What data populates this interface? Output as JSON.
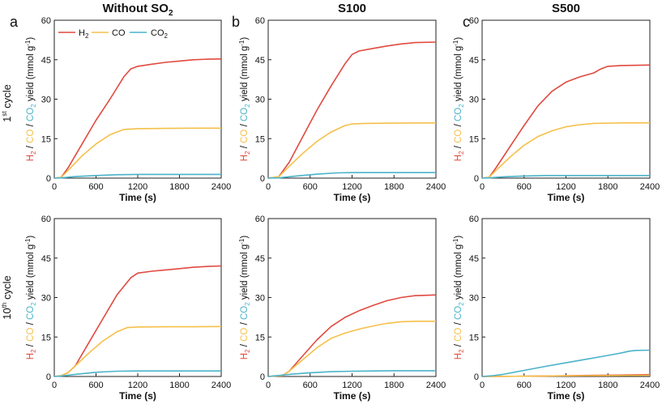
{
  "colors": {
    "h2": "#e04a3f",
    "co": "#f5c04a",
    "co2": "#4ab3c9",
    "text": "#111111"
  },
  "column_titles": [
    {
      "main": "Without SO",
      "sub": "2"
    },
    {
      "main": "S100",
      "sub": ""
    },
    {
      "main": "S500",
      "sub": ""
    }
  ],
  "panel_letters": [
    "a",
    "b",
    "c"
  ],
  "row_labels": [
    {
      "pre": "1",
      "sup": "st",
      "post": " cycle"
    },
    {
      "pre": "10",
      "sup": "th",
      "post": " cycle"
    }
  ],
  "ylabel": {
    "h2": "H",
    "co": "CO",
    "co2": "CO",
    "sub2": "2",
    "sep": " / ",
    "rest": " yield (mmol g",
    "sup": "-1",
    "close": ")"
  },
  "legend": [
    {
      "key": "h2",
      "label": "H",
      "sub": "2"
    },
    {
      "key": "co",
      "label": "CO",
      "sub": ""
    },
    {
      "key": "co2",
      "label": "CO",
      "sub": "2"
    }
  ],
  "chart_data": [
    {
      "type": "line",
      "panel": "a",
      "cycle": "1st cycle",
      "title": "Without SO2",
      "xlabel": "Time (s)",
      "ylabel": "H2 / CO / CO2 yield (mmol g-1)",
      "xlim": [
        0,
        2400
      ],
      "ylim": [
        0,
        60
      ],
      "xticks": [
        0,
        600,
        1200,
        1800,
        2400
      ],
      "yticks": [
        0,
        15,
        30,
        45,
        60
      ],
      "series": [
        {
          "name": "H2",
          "key": "h2",
          "x": [
            0,
            100,
            200,
            400,
            600,
            800,
            1000,
            1100,
            1200,
            1400,
            1600,
            1800,
            2000,
            2200,
            2400
          ],
          "y": [
            0,
            0.3,
            4,
            13,
            22,
            30,
            38.5,
            41.5,
            42.5,
            43.3,
            44,
            44.5,
            45,
            45.2,
            45.3
          ]
        },
        {
          "name": "CO",
          "key": "co",
          "x": [
            0,
            100,
            200,
            400,
            600,
            800,
            1000,
            1200,
            1600,
            2000,
            2400
          ],
          "y": [
            0,
            0.3,
            3,
            8.5,
            13,
            16.5,
            18.5,
            18.8,
            18.9,
            19,
            19
          ]
        },
        {
          "name": "CO2",
          "key": "co2",
          "x": [
            0,
            100,
            300,
            600,
            900,
            1200,
            1800,
            2400
          ],
          "y": [
            0,
            0.1,
            0.6,
            1,
            1.3,
            1.4,
            1.4,
            1.4
          ]
        }
      ]
    },
    {
      "type": "line",
      "panel": "b",
      "cycle": "1st cycle",
      "title": "S100",
      "xlabel": "Time (s)",
      "ylabel": "H2 / CO / CO2 yield (mmol g-1)",
      "xlim": [
        0,
        2400
      ],
      "ylim": [
        0,
        60
      ],
      "xticks": [
        0,
        600,
        1200,
        1800,
        2400
      ],
      "yticks": [
        0,
        15,
        30,
        45,
        60
      ],
      "series": [
        {
          "name": "H2",
          "key": "h2",
          "x": [
            0,
            150,
            300,
            500,
            700,
            900,
            1100,
            1200,
            1300,
            1500,
            1700,
            1900,
            2100,
            2400
          ],
          "y": [
            0,
            0.5,
            6,
            16,
            26,
            35,
            43.5,
            47,
            48.3,
            49.3,
            50.2,
            51,
            51.5,
            51.7
          ]
        },
        {
          "name": "CO",
          "key": "co",
          "x": [
            0,
            150,
            300,
            500,
            700,
            900,
            1100,
            1200,
            1400,
            1800,
            2400
          ],
          "y": [
            0,
            0.5,
            4.5,
            9.5,
            14,
            17.5,
            20,
            20.6,
            20.8,
            20.9,
            21
          ]
        },
        {
          "name": "CO2",
          "key": "co2",
          "x": [
            0,
            150,
            400,
            700,
            1000,
            1200,
            1800,
            2400
          ],
          "y": [
            0,
            0.1,
            0.8,
            1.5,
            2,
            2.1,
            2.1,
            2.1
          ]
        }
      ]
    },
    {
      "type": "line",
      "panel": "c",
      "cycle": "1st cycle",
      "title": "S500",
      "xlabel": "Time (s)",
      "ylabel": "H2 / CO / CO2 yield (mmol g-1)",
      "xlim": [
        0,
        2400
      ],
      "ylim": [
        0,
        60
      ],
      "xticks": [
        0,
        600,
        1200,
        1800,
        2400
      ],
      "yticks": [
        0,
        15,
        30,
        45,
        60
      ],
      "series": [
        {
          "name": "H2",
          "key": "h2",
          "x": [
            0,
            100,
            200,
            400,
            600,
            800,
            1000,
            1200,
            1400,
            1600,
            1700,
            1800,
            2000,
            2400
          ],
          "y": [
            0,
            0.3,
            4,
            12,
            20,
            27.5,
            33,
            36.5,
            38.5,
            40,
            41.5,
            42.5,
            42.8,
            43
          ]
        },
        {
          "name": "CO",
          "key": "co",
          "x": [
            0,
            100,
            200,
            400,
            600,
            800,
            1000,
            1200,
            1400,
            1600,
            2000,
            2400
          ],
          "y": [
            0,
            0.3,
            3,
            8,
            12.5,
            15.8,
            18,
            19.5,
            20.3,
            20.8,
            21,
            21
          ]
        },
        {
          "name": "CO2",
          "key": "co2",
          "x": [
            0,
            100,
            300,
            600,
            900,
            1200,
            2400
          ],
          "y": [
            0,
            0.1,
            0.5,
            0.8,
            1,
            1,
            1
          ]
        }
      ]
    },
    {
      "type": "line",
      "panel": "a",
      "cycle": "10th cycle",
      "title": "Without SO2",
      "xlabel": "Time (s)",
      "ylabel": "H2 / CO / CO2 yield (mmol g-1)",
      "xlim": [
        0,
        2400
      ],
      "ylim": [
        0,
        60
      ],
      "xticks": [
        0,
        600,
        1200,
        1800,
        2400
      ],
      "yticks": [
        0,
        15,
        30,
        45,
        60
      ],
      "series": [
        {
          "name": "H2",
          "key": "h2",
          "x": [
            0,
            100,
            200,
            300,
            500,
            700,
            900,
            1100,
            1200,
            1400,
            1600,
            1800,
            2000,
            2200,
            2400
          ],
          "y": [
            0,
            0.3,
            1.5,
            4,
            13,
            22,
            31,
            37.5,
            39.3,
            40,
            40.5,
            41,
            41.5,
            41.8,
            42
          ]
        },
        {
          "name": "CO",
          "key": "co",
          "x": [
            0,
            100,
            200,
            300,
            500,
            700,
            900,
            1050,
            1200,
            1600,
            2000,
            2400
          ],
          "y": [
            0,
            0.3,
            1.5,
            4,
            9,
            13.5,
            17,
            18.6,
            18.8,
            18.9,
            18.9,
            19
          ]
        },
        {
          "name": "CO2",
          "key": "co2",
          "x": [
            0,
            100,
            300,
            600,
            900,
            1200,
            1800,
            2400
          ],
          "y": [
            0,
            0.2,
            0.8,
            1.6,
            2,
            2.1,
            2.1,
            2.1
          ]
        }
      ]
    },
    {
      "type": "line",
      "panel": "b",
      "cycle": "10th cycle",
      "title": "S100",
      "xlabel": "Time (s)",
      "ylabel": "H2 / CO / CO2 yield (mmol g-1)",
      "xlim": [
        0,
        2400
      ],
      "ylim": [
        0,
        60
      ],
      "xticks": [
        0,
        600,
        1200,
        1800,
        2400
      ],
      "yticks": [
        0,
        15,
        30,
        45,
        60
      ],
      "series": [
        {
          "name": "H2",
          "key": "h2",
          "x": [
            0,
            200,
            300,
            500,
            700,
            900,
            1100,
            1300,
            1500,
            1700,
            1900,
            2100,
            2400
          ],
          "y": [
            0,
            0.3,
            2,
            8,
            14,
            19,
            22.5,
            25,
            27,
            28.8,
            30,
            30.7,
            31
          ]
        },
        {
          "name": "CO",
          "key": "co",
          "x": [
            0,
            200,
            300,
            500,
            700,
            900,
            1100,
            1300,
            1500,
            1700,
            1900,
            2100,
            2400
          ],
          "y": [
            0,
            0.3,
            2,
            6.5,
            11,
            14.5,
            16.5,
            18,
            19.2,
            20.2,
            20.8,
            21,
            21
          ]
        },
        {
          "name": "CO2",
          "key": "co2",
          "x": [
            0,
            300,
            600,
            900,
            1200,
            1500,
            1800,
            2400
          ],
          "y": [
            0,
            0.8,
            1.4,
            1.8,
            2,
            2.1,
            2.2,
            2.2
          ]
        }
      ]
    },
    {
      "type": "line",
      "panel": "c",
      "cycle": "10th cycle",
      "title": "S500",
      "xlabel": "Time (s)",
      "ylabel": "H2 / CO / CO2 yield (mmol g-1)",
      "xlim": [
        0,
        2400
      ],
      "ylim": [
        0,
        60
      ],
      "xticks": [
        0,
        600,
        1200,
        1800,
        2400
      ],
      "yticks": [
        0,
        15,
        30,
        45,
        60
      ],
      "series": [
        {
          "name": "H2",
          "key": "h2",
          "x": [
            0,
            300,
            600,
            900,
            1200,
            1500,
            1800,
            2100,
            2400
          ],
          "y": [
            0,
            0.05,
            0.1,
            0.2,
            0.3,
            0.4,
            0.5,
            0.6,
            0.7
          ]
        },
        {
          "name": "CO",
          "key": "co",
          "x": [
            0,
            300,
            600,
            900,
            1200,
            1500,
            1800,
            2100,
            2400
          ],
          "y": [
            0,
            0.05,
            0.1,
            0.2,
            0.25,
            0.3,
            0.35,
            0.4,
            0.45
          ]
        },
        {
          "name": "CO2",
          "key": "co2",
          "x": [
            0,
            150,
            300,
            600,
            900,
            1200,
            1500,
            1800,
            2000,
            2100,
            2200,
            2400
          ],
          "y": [
            0,
            0.3,
            0.8,
            2.3,
            3.8,
            5.2,
            6.6,
            8,
            9,
            9.6,
            9.9,
            10
          ]
        }
      ]
    }
  ]
}
